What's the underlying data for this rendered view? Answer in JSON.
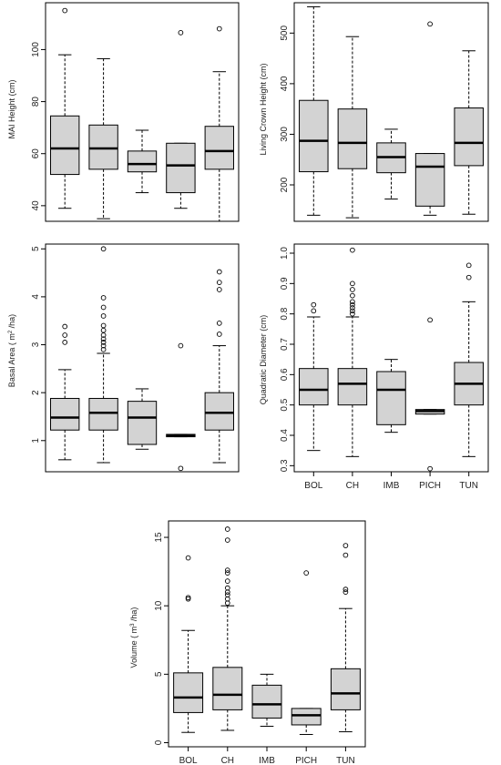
{
  "categories": [
    "BOL",
    "CH",
    "IMB",
    "PICH",
    "TUN"
  ],
  "chart_data": [
    {
      "type": "boxplot",
      "ylabel": "MAI Height (cm)",
      "ylim": [
        34,
        118
      ],
      "yticks": [
        40,
        60,
        80,
        100
      ],
      "show_xticklabels": false,
      "boxes": [
        {
          "category": "BOL",
          "min": 39,
          "q1": 52,
          "median": 62,
          "q3": 74.5,
          "max": 98,
          "outliers": [
            115
          ]
        },
        {
          "category": "CH",
          "min": 35,
          "q1": 54,
          "median": 62,
          "q3": 71,
          "max": 96.5,
          "outliers": []
        },
        {
          "category": "IMB",
          "min": 45,
          "q1": 53,
          "median": 56,
          "q3": 61,
          "max": 69,
          "outliers": []
        },
        {
          "category": "PICH",
          "min": 39,
          "q1": 45,
          "median": 55.5,
          "q3": 64,
          "max": 64,
          "outliers": [
            106.5
          ]
        },
        {
          "category": "TUN",
          "min": 34,
          "q1": 54,
          "median": 61,
          "q3": 70.5,
          "max": 91.5,
          "outliers": [
            108
          ]
        }
      ]
    },
    {
      "type": "boxplot",
      "ylabel": "Living Crown Height (cm)",
      "ylim": [
        128,
        560
      ],
      "yticks": [
        200,
        300,
        400,
        500
      ],
      "show_xticklabels": false,
      "boxes": [
        {
          "category": "BOL",
          "min": 140,
          "q1": 226,
          "median": 287,
          "q3": 367,
          "max": 552,
          "outliers": []
        },
        {
          "category": "CH",
          "min": 135,
          "q1": 232,
          "median": 283,
          "q3": 350,
          "max": 493,
          "outliers": []
        },
        {
          "category": "IMB",
          "min": 172,
          "q1": 224,
          "median": 255,
          "q3": 283,
          "max": 310,
          "outliers": []
        },
        {
          "category": "PICH",
          "min": 140,
          "q1": 158,
          "median": 236,
          "q3": 262,
          "max": 262,
          "outliers": [
            518
          ]
        },
        {
          "category": "TUN",
          "min": 142,
          "q1": 238,
          "median": 283,
          "q3": 352,
          "max": 465,
          "outliers": []
        }
      ]
    },
    {
      "type": "boxplot",
      "ylabel_parts": [
        "Basal Area ( m",
        "2",
        " /ha)"
      ],
      "ylim": [
        0.35,
        5.1
      ],
      "yticks": [
        1,
        2,
        3,
        4,
        5
      ],
      "show_xticklabels": false,
      "boxes": [
        {
          "category": "BOL",
          "min": 0.6,
          "q1": 1.22,
          "median": 1.48,
          "q3": 1.88,
          "max": 2.48,
          "outliers": [
            3.05,
            3.2,
            3.38
          ]
        },
        {
          "category": "CH",
          "min": 0.54,
          "q1": 1.22,
          "median": 1.58,
          "q3": 1.88,
          "max": 2.82,
          "outliers": [
            2.9,
            2.98,
            3.05,
            3.12,
            3.2,
            3.3,
            3.4,
            3.6,
            3.78,
            3.98,
            5.0
          ]
        },
        {
          "category": "IMB",
          "min": 0.82,
          "q1": 0.92,
          "median": 1.48,
          "q3": 1.82,
          "max": 2.08,
          "outliers": []
        },
        {
          "category": "PICH",
          "min": 1.08,
          "q1": 1.08,
          "median": 1.1,
          "q3": 1.13,
          "max": 1.13,
          "outliers": [
            0.42,
            2.98
          ]
        },
        {
          "category": "TUN",
          "min": 0.54,
          "q1": 1.22,
          "median": 1.58,
          "q3": 2.0,
          "max": 2.98,
          "outliers": [
            3.22,
            3.45,
            4.15,
            4.3,
            4.52
          ]
        }
      ]
    },
    {
      "type": "boxplot",
      "ylabel": "Quadratic Diameter (cm)",
      "ylim": [
        0.28,
        1.03
      ],
      "yticks": [
        0.3,
        0.4,
        0.5,
        0.6,
        0.7,
        0.8,
        0.9,
        1.0
      ],
      "ytick_labels": [
        "0.3",
        "0.4",
        "0.5",
        "0.6",
        "0.7",
        "0.8",
        "0.9",
        "1.0"
      ],
      "show_xticklabels": true,
      "boxes": [
        {
          "category": "BOL",
          "min": 0.35,
          "q1": 0.5,
          "median": 0.55,
          "q3": 0.62,
          "max": 0.79,
          "outliers": [
            0.81,
            0.83
          ]
        },
        {
          "category": "CH",
          "min": 0.33,
          "q1": 0.5,
          "median": 0.57,
          "q3": 0.62,
          "max": 0.79,
          "outliers": [
            0.8,
            0.81,
            0.82,
            0.83,
            0.84,
            0.86,
            0.88,
            0.9,
            1.01
          ]
        },
        {
          "category": "IMB",
          "min": 0.41,
          "q1": 0.435,
          "median": 0.55,
          "q3": 0.61,
          "max": 0.65,
          "outliers": []
        },
        {
          "category": "PICH",
          "min": 0.47,
          "q1": 0.47,
          "median": 0.48,
          "q3": 0.485,
          "max": 0.485,
          "outliers": [
            0.29,
            0.78
          ]
        },
        {
          "category": "TUN",
          "min": 0.33,
          "q1": 0.5,
          "median": 0.57,
          "q3": 0.64,
          "max": 0.84,
          "outliers": [
            0.92,
            0.96
          ]
        }
      ]
    },
    {
      "type": "boxplot",
      "ylabel_parts": [
        "Volume ( m",
        "3",
        " /ha)"
      ],
      "ylim": [
        -0.3,
        16.2
      ],
      "yticks": [
        0,
        5,
        10,
        15
      ],
      "show_xticklabels": true,
      "boxes": [
        {
          "category": "BOL",
          "min": 0.75,
          "q1": 2.2,
          "median": 3.3,
          "q3": 5.1,
          "max": 8.2,
          "outliers": [
            10.5,
            10.6,
            13.5
          ]
        },
        {
          "category": "CH",
          "min": 0.9,
          "q1": 2.4,
          "median": 3.5,
          "q3": 5.5,
          "max": 10.0,
          "outliers": [
            10.2,
            10.5,
            10.8,
            11.0,
            11.3,
            11.8,
            12.4,
            12.6,
            14.8,
            15.6
          ]
        },
        {
          "category": "IMB",
          "min": 1.2,
          "q1": 1.8,
          "median": 2.8,
          "q3": 4.2,
          "max": 5.0,
          "outliers": []
        },
        {
          "category": "PICH",
          "min": 0.6,
          "q1": 1.3,
          "median": 2.0,
          "q3": 2.5,
          "max": 2.5,
          "outliers": [
            12.4
          ]
        },
        {
          "category": "TUN",
          "min": 0.8,
          "q1": 2.4,
          "median": 3.6,
          "q3": 5.4,
          "max": 9.8,
          "outliers": [
            11.0,
            11.2,
            13.7,
            14.4
          ]
        }
      ]
    }
  ],
  "style": {
    "box_fill": "#d3d3d3",
    "line_color": "#000000",
    "median_color": "#000000"
  }
}
